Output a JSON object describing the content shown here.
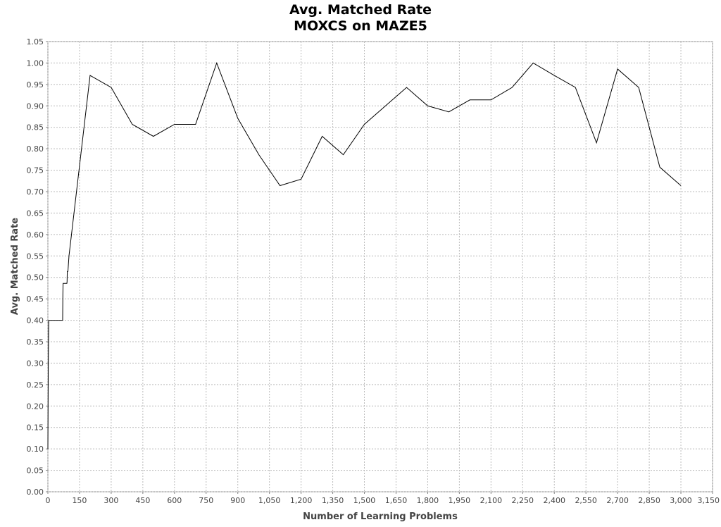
{
  "chart_data": {
    "type": "line",
    "title": "Avg. Matched Rate",
    "subtitle": "MOXCS on MAZE5",
    "xlabel": "Number of Learning Problems",
    "ylabel": "Avg. Matched Rate",
    "xlim": [
      0,
      3150
    ],
    "ylim": [
      0,
      1.05
    ],
    "grid": true,
    "legend": "none",
    "line_color": "#000000",
    "x_ticks": [
      "0",
      "150",
      "300",
      "450",
      "600",
      "750",
      "900",
      "1,050",
      "1,200",
      "1,350",
      "1,500",
      "1,650",
      "1,800",
      "1,950",
      "2,100",
      "2,250",
      "2,400",
      "2,550",
      "2,700",
      "2,850",
      "3,000",
      "3,150"
    ],
    "y_ticks": [
      "0.00",
      "0.05",
      "0.10",
      "0.15",
      "0.20",
      "0.25",
      "0.30",
      "0.35",
      "0.40",
      "0.45",
      "0.50",
      "0.55",
      "0.60",
      "0.65",
      "0.70",
      "0.75",
      "0.80",
      "0.85",
      "0.90",
      "0.95",
      "1.00",
      "1.05"
    ],
    "series": [
      {
        "x": [
          0,
          1,
          2,
          3,
          4,
          5,
          70,
          71,
          72,
          90,
          91,
          92,
          95,
          100,
          200,
          300,
          400,
          500,
          600,
          700,
          800,
          900,
          1000,
          1100,
          1200,
          1300,
          1400,
          1500,
          1600,
          1700,
          1800,
          1900,
          2000,
          2100,
          2200,
          2300,
          2400,
          2500,
          2600,
          2700,
          2800,
          2900,
          3000
        ],
        "y": [
          0.1,
          0.2,
          0.3,
          0.35,
          0.4,
          0.4,
          0.4,
          0.46,
          0.486,
          0.486,
          0.49,
          0.514,
          0.514,
          0.55,
          0.971,
          0.943,
          0.857,
          0.829,
          0.857,
          0.857,
          1.0,
          0.871,
          0.786,
          0.714,
          0.729,
          0.829,
          0.786,
          0.857,
          0.9,
          0.943,
          0.9,
          0.886,
          0.914,
          0.914,
          0.943,
          1.0,
          0.971,
          0.943,
          0.814,
          0.986,
          0.943,
          0.757,
          0.714
        ]
      }
    ]
  }
}
